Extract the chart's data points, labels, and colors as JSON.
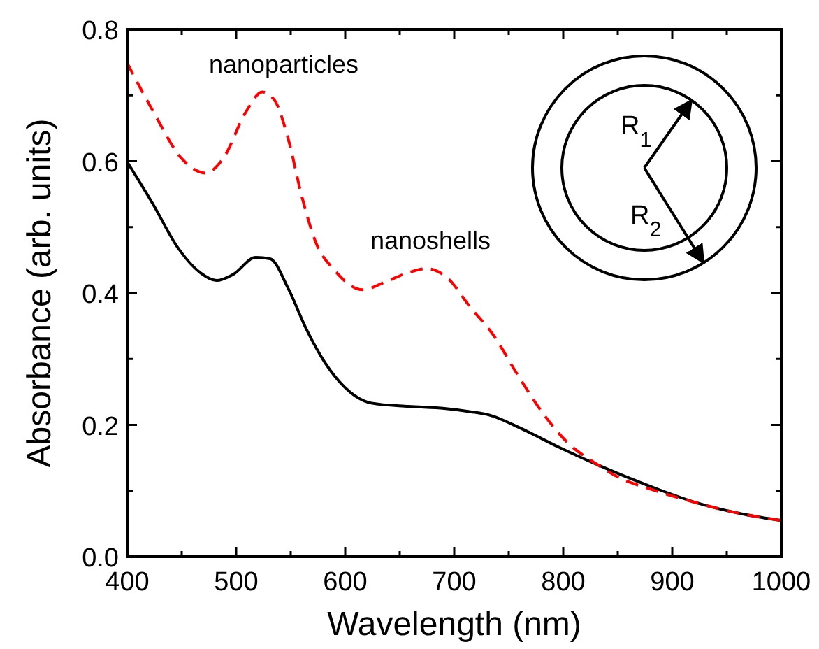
{
  "chart_data": {
    "type": "line",
    "xlabel": "Wavelength (nm)",
    "ylabel": "Absorbance (arb. units)",
    "xlim": [
      400,
      1000
    ],
    "ylim": [
      0,
      0.8
    ],
    "xticks": [
      400,
      {
        "value": 450,
        "label": null
      },
      500,
      {
        "value": 550,
        "label": null
      },
      600,
      {
        "value": 650,
        "label": null
      },
      700,
      {
        "value": 750,
        "label": null
      },
      800,
      {
        "value": 850,
        "label": null
      },
      900,
      {
        "value": 950,
        "label": null
      },
      1000
    ],
    "yticks": [
      {
        "value": 0,
        "label": "0.0"
      },
      {
        "value": 0.1,
        "label": null
      },
      0.2,
      {
        "value": 0.3,
        "label": null
      },
      0.4,
      {
        "value": 0.5,
        "label": null
      },
      0.6,
      {
        "value": 0.7,
        "label": null
      },
      0.8
    ],
    "grid": false,
    "marker": "none",
    "series": [
      {
        "color": "#000000",
        "line_style": "solid",
        "x": [
          400,
          424,
          446,
          467,
          482,
          497,
          518,
          531,
          548,
          565,
          582,
          599,
          624,
          658,
          691,
          715,
          732,
          762,
          796,
          839,
          881,
          924,
          967,
          1000
        ],
        "values": [
          0.599,
          0.534,
          0.47,
          0.431,
          0.419,
          0.428,
          0.454,
          0.452,
          0.406,
          0.343,
          0.293,
          0.258,
          0.233,
          0.228,
          0.225,
          0.22,
          0.215,
          0.194,
          0.166,
          0.134,
          0.106,
          0.081,
          0.064,
          0.055
        ]
      },
      {
        "color": "#ff0000",
        "line_style": "dashed",
        "x": [
          400,
          424,
          450,
          472,
          488,
          509,
          524,
          535,
          548,
          560,
          573,
          590,
          616,
          637,
          658,
          675,
          693,
          715,
          736,
          757,
          779,
          804,
          830,
          851,
          881,
          915,
          958,
          1000
        ],
        "values": [
          0.749,
          0.675,
          0.604,
          0.582,
          0.604,
          0.675,
          0.705,
          0.693,
          0.632,
          0.548,
          0.477,
          0.435,
          0.405,
          0.417,
          0.431,
          0.437,
          0.424,
          0.378,
          0.336,
          0.279,
          0.223,
          0.173,
          0.141,
          0.12,
          0.102,
          0.085,
          0.067,
          0.055
        ]
      }
    ],
    "annotations": [
      "nanoparticles",
      "nanoshells",
      "R$_{1}$",
      "R$_{2}$"
    ]
  }
}
